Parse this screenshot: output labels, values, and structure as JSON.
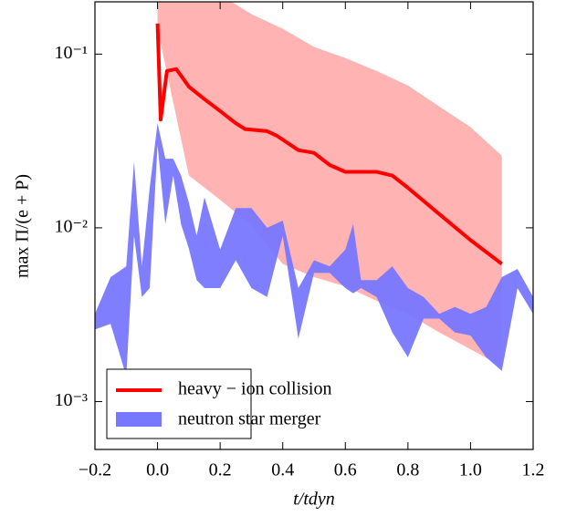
{
  "chart_data": {
    "type": "line",
    "xlabel": "t/tdyn",
    "ylabel": "max Π/(e + P)",
    "log_y": true,
    "legend": "lower left",
    "xlim": [
      -0.2,
      1.2
    ],
    "ylim": [
      0.00053,
      0.2
    ],
    "xticks": [
      {
        "value": -0.2,
        "label": "−0.2"
      },
      {
        "value": 0,
        "label": "0.0"
      },
      {
        "value": 0.2,
        "label": "0.2"
      },
      {
        "value": 0.4,
        "label": "0.4"
      },
      {
        "value": 0.6,
        "label": "0.6"
      },
      {
        "value": 0.8,
        "label": "0.8"
      },
      {
        "value": 1.0,
        "label": "1.0"
      },
      {
        "value": 1.2,
        "label": "1.2"
      }
    ],
    "yticks": [
      {
        "value": 0.001,
        "label": "10⁻³"
      },
      {
        "value": 0.01,
        "label": "10⁻²"
      },
      {
        "value": 0.1,
        "label": "10⁻¹"
      }
    ],
    "bands": [
      {
        "color": "#ffb3b3",
        "x": [
          0,
          0.1,
          0.2,
          0.3,
          0.4,
          0.5,
          0.6,
          0.7,
          0.8,
          0.9,
          1.0,
          1.1
        ],
        "upper": [
          0.25,
          0.25,
          0.22,
          0.17,
          0.14,
          0.11,
          0.095,
          0.08,
          0.066,
          0.05,
          0.038,
          0.026
        ],
        "lower": [
          0.14,
          0.02,
          0.0145,
          0.0103,
          0.0062,
          0.0052,
          0.0046,
          0.0038,
          0.0032,
          0.0025,
          0.002,
          0.0016
        ]
      },
      {
        "name": "neutron star merger",
        "color": "#7777ff",
        "x": [
          -0.2,
          -0.15,
          -0.1,
          -0.075,
          -0.05,
          -0.025,
          0,
          0.025,
          0.05,
          0.075,
          0.1,
          0.125,
          0.15,
          0.2,
          0.25,
          0.3,
          0.35,
          0.4,
          0.45,
          0.5,
          0.55,
          0.6,
          0.625,
          0.65,
          0.7,
          0.75,
          0.8,
          0.85,
          0.9,
          0.95,
          1.0,
          1.05,
          1.1,
          1.15,
          1.2
        ],
        "upper": [
          0.0032,
          0.0052,
          0.006,
          0.024,
          0.006,
          0.017,
          0.04,
          0.025,
          0.025,
          0.02,
          0.014,
          0.009,
          0.015,
          0.0075,
          0.013,
          0.013,
          0.01,
          0.011,
          0.0045,
          0.0065,
          0.006,
          0.0075,
          0.0105,
          0.005,
          0.005,
          0.006,
          0.0045,
          0.004,
          0.0032,
          0.0035,
          0.0032,
          0.0035,
          0.0052,
          0.0058,
          0.004
        ],
        "lower": [
          0.0026,
          0.0028,
          0.0014,
          0.009,
          0.004,
          0.0045,
          0.03,
          0.0105,
          0.02,
          0.0105,
          0.0076,
          0.005,
          0.0045,
          0.0045,
          0.0065,
          0.0045,
          0.004,
          0.009,
          0.0023,
          0.0055,
          0.0055,
          0.0045,
          0.0042,
          0.0045,
          0.004,
          0.0025,
          0.0018,
          0.003,
          0.003,
          0.0025,
          0.0024,
          0.0018,
          0.0015,
          0.0045,
          0.0032
        ]
      }
    ],
    "series": [
      {
        "name": "heavy − ion collision",
        "color": "#ff0000",
        "x": [
          0,
          0.01,
          0.03,
          0.06,
          0.1,
          0.15,
          0.2,
          0.25,
          0.28,
          0.35,
          0.38,
          0.45,
          0.5,
          0.55,
          0.6,
          0.65,
          0.7,
          0.75,
          0.8,
          0.9,
          1.0,
          1.1
        ],
        "values": [
          0.15,
          0.042,
          0.08,
          0.082,
          0.065,
          0.055,
          0.047,
          0.04,
          0.037,
          0.036,
          0.034,
          0.028,
          0.027,
          0.023,
          0.021,
          0.021,
          0.021,
          0.02,
          0.017,
          0.012,
          0.0085,
          0.0062
        ]
      }
    ]
  }
}
